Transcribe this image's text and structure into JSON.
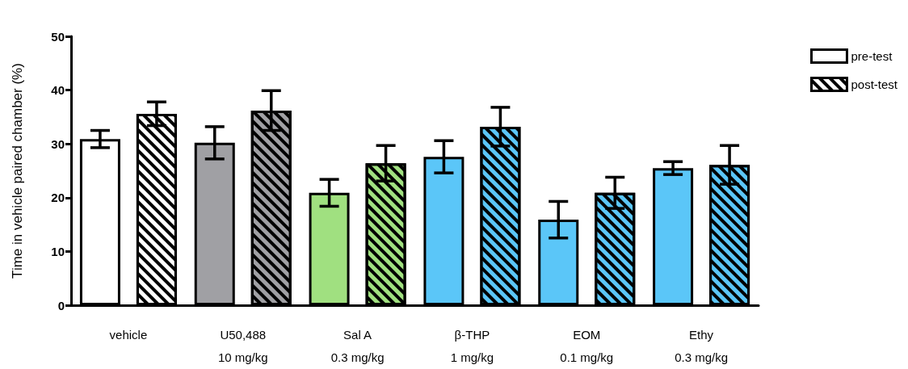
{
  "chart_data": {
    "type": "bar",
    "ylabel": "Time in vehicle paired chamber (%)",
    "categories": [
      "vehicle",
      "U50,488\n10 mg/kg",
      "Sal A\n0.3 mg/kg",
      "β-THP\n1 mg/kg",
      "EOM\n0.1 mg/kg",
      "Ethy\n0.3 mg/kg"
    ],
    "series": [
      {
        "name": "pre-test",
        "color": "#ffffff",
        "colors": [
          "#ffffff",
          "#a0a0a4",
          "#a0e080",
          "#5bc6f8",
          "#5bc6f8",
          "#5bc6f8"
        ],
        "values": [
          30.9,
          30.2,
          20.9,
          27.6,
          15.9,
          25.5
        ],
        "errors": [
          1.6,
          3,
          2.5,
          3,
          3.4,
          1.2
        ]
      },
      {
        "name": "post-test",
        "color": "#ffffff",
        "colors": [
          "#ffffff",
          "#a0a0a4",
          "#a0e080",
          "#5bc6f8",
          "#5bc6f8",
          "#5bc6f8"
        ],
        "values": [
          35.6,
          36.2,
          26.4,
          33.2,
          20.9,
          26.1
        ],
        "errors": [
          2.2,
          3.7,
          3.3,
          3.6,
          2.9,
          3.6
        ]
      }
    ],
    "ylim": [
      0,
      50
    ],
    "yticks": [
      0,
      10,
      20,
      30,
      40,
      50
    ],
    "grid": false,
    "legend": "top right"
  }
}
